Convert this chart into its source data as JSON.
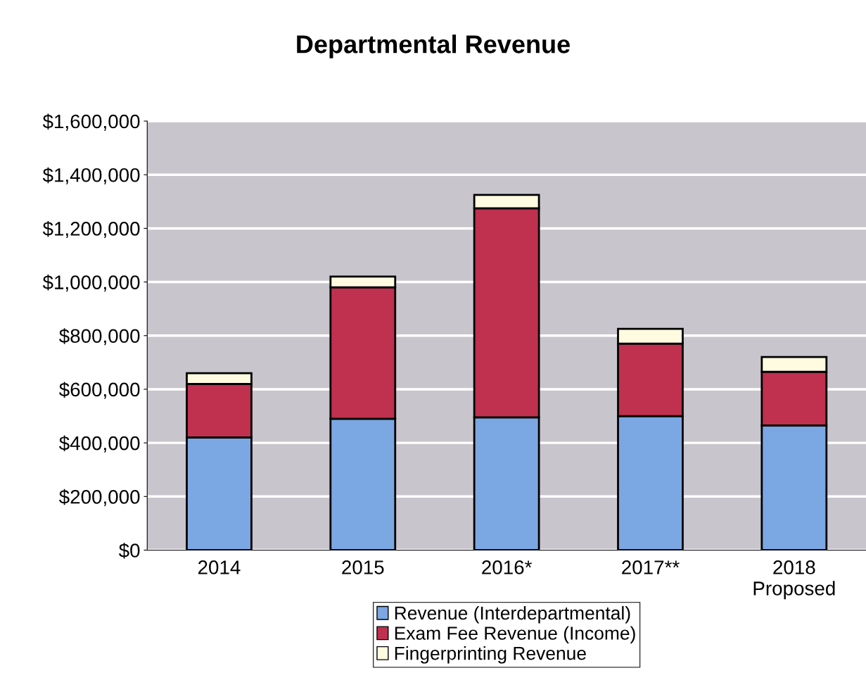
{
  "chart_data": {
    "type": "bar",
    "stacked": true,
    "title": "Departmental Revenue",
    "categories": [
      "2014",
      "2015",
      "2016*",
      "2017**",
      "2018\nProposed"
    ],
    "series": [
      {
        "name": "Revenue (Interdepartmental)",
        "color": "#7ba7e3",
        "values": [
          420000,
          490000,
          495000,
          500000,
          465000
        ]
      },
      {
        "name": "Exam Fee Revenue (Income)",
        "color": "#c0304f",
        "values": [
          200000,
          490000,
          780000,
          270000,
          200000
        ]
      },
      {
        "name": "Fingerprinting Revenue",
        "color": "#fffbe0",
        "values": [
          40000,
          40000,
          50000,
          55000,
          55000
        ]
      }
    ],
    "ylim": [
      0,
      1600000
    ],
    "yticks": [
      {
        "value": 0,
        "label": "$0"
      },
      {
        "value": 200000,
        "label": "$200,000"
      },
      {
        "value": 400000,
        "label": "$400,000"
      },
      {
        "value": 600000,
        "label": "$600,000"
      },
      {
        "value": 800000,
        "label": "$800,000"
      },
      {
        "value": 1000000,
        "label": "$1,000,000"
      },
      {
        "value": 1200000,
        "label": "$1,200,000"
      },
      {
        "value": 1400000,
        "label": "$1,400,000"
      },
      {
        "value": 1600000,
        "label": "$1,600,000"
      }
    ],
    "grid": "y",
    "legend": "bottom"
  }
}
